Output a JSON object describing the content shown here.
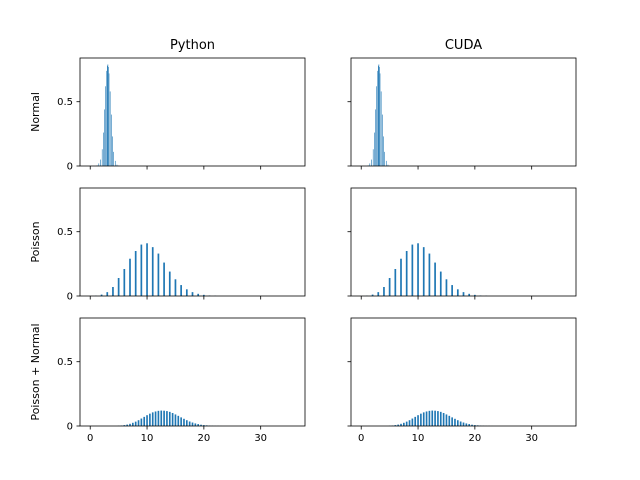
{
  "figure": {
    "columns": [
      "Python",
      "CUDA"
    ],
    "rows": [
      "Normal",
      "Poisson",
      "Poisson + Normal"
    ],
    "bar_color": "#1f77b4",
    "shared_axes": {
      "xlim": [
        -1.8,
        37.8
      ],
      "ylim": [
        0,
        0.84
      ],
      "xticks": [
        0,
        10,
        20,
        30
      ],
      "yticks": [
        0.0,
        0.5
      ]
    }
  },
  "chart_data": [
    {
      "type": "bar",
      "title": "Python",
      "ylabel": "Normal",
      "bin_width": 0.09,
      "xlim": [
        -1.8,
        37.8
      ],
      "ylim": [
        0,
        0.84
      ],
      "xticks": [
        0,
        10,
        20,
        30
      ],
      "yticks": [
        0.0,
        0.5
      ],
      "x": [
        1.2,
        1.5,
        1.8,
        2.1,
        2.3,
        2.5,
        2.7,
        2.9,
        3.0,
        3.1,
        3.2,
        3.3,
        3.5,
        3.7,
        3.9,
        4.1,
        4.4,
        4.7,
        5.0
      ],
      "values": [
        0.005,
        0.02,
        0.05,
        0.13,
        0.26,
        0.44,
        0.62,
        0.74,
        0.78,
        0.79,
        0.77,
        0.72,
        0.58,
        0.4,
        0.23,
        0.11,
        0.04,
        0.01,
        0.003
      ]
    },
    {
      "type": "bar",
      "title": "CUDA",
      "ylabel": "",
      "bin_width": 0.09,
      "xlim": [
        -1.8,
        37.8
      ],
      "ylim": [
        0,
        0.84
      ],
      "xticks": [
        0,
        10,
        20,
        30
      ],
      "yticks": [
        0.0,
        0.5
      ],
      "x": [
        1.2,
        1.5,
        1.8,
        2.1,
        2.3,
        2.5,
        2.7,
        2.9,
        3.0,
        3.1,
        3.2,
        3.3,
        3.5,
        3.7,
        3.9,
        4.1,
        4.4,
        4.7,
        5.0
      ],
      "values": [
        0.005,
        0.02,
        0.05,
        0.13,
        0.26,
        0.44,
        0.62,
        0.74,
        0.78,
        0.79,
        0.77,
        0.72,
        0.58,
        0.4,
        0.23,
        0.11,
        0.04,
        0.01,
        0.003
      ]
    },
    {
      "type": "bar",
      "title": "",
      "ylabel": "Poisson",
      "bin_width": 0.3,
      "xlim": [
        -1.8,
        37.8
      ],
      "ylim": [
        0,
        0.84
      ],
      "xticks": [
        0,
        10,
        20,
        30
      ],
      "yticks": [
        0.0,
        0.5
      ],
      "x": [
        1,
        2,
        3,
        4,
        5,
        6,
        7,
        8,
        9,
        10,
        11,
        12,
        13,
        14,
        15,
        16,
        17,
        18,
        19,
        20,
        21,
        22
      ],
      "values": [
        0.002,
        0.011,
        0.03,
        0.07,
        0.14,
        0.21,
        0.29,
        0.35,
        0.4,
        0.41,
        0.38,
        0.33,
        0.26,
        0.19,
        0.13,
        0.085,
        0.052,
        0.03,
        0.017,
        0.009,
        0.004,
        0.002
      ]
    },
    {
      "type": "bar",
      "title": "",
      "ylabel": "",
      "bin_width": 0.3,
      "xlim": [
        -1.8,
        37.8
      ],
      "ylim": [
        0,
        0.84
      ],
      "xticks": [
        0,
        10,
        20,
        30
      ],
      "yticks": [
        0.0,
        0.5
      ],
      "x": [
        1,
        2,
        3,
        4,
        5,
        6,
        7,
        8,
        9,
        10,
        11,
        12,
        13,
        14,
        15,
        16,
        17,
        18,
        19,
        20,
        21,
        22
      ],
      "values": [
        0.002,
        0.011,
        0.03,
        0.07,
        0.14,
        0.21,
        0.29,
        0.35,
        0.4,
        0.41,
        0.38,
        0.33,
        0.26,
        0.19,
        0.13,
        0.085,
        0.052,
        0.03,
        0.017,
        0.009,
        0.004,
        0.002
      ]
    },
    {
      "type": "bar",
      "title": "",
      "ylabel": "Poisson + Normal",
      "bin_width": 0.29,
      "xlim": [
        -1.8,
        37.8
      ],
      "ylim": [
        0,
        0.84
      ],
      "xticks": [
        0,
        10,
        20,
        30
      ],
      "yticks": [
        0.0,
        0.5
      ],
      "x": [
        5,
        5.5,
        6,
        6.5,
        7,
        7.5,
        8,
        8.5,
        9,
        9.5,
        10,
        10.5,
        11,
        11.5,
        12,
        12.5,
        13,
        13.5,
        14,
        14.5,
        15,
        15.5,
        16,
        16.5,
        17,
        17.5,
        18,
        18.5,
        19,
        19.5,
        20,
        20.5,
        21,
        21.5,
        22,
        22.5,
        23
      ],
      "values": [
        0.002,
        0.004,
        0.007,
        0.011,
        0.017,
        0.025,
        0.034,
        0.045,
        0.058,
        0.071,
        0.084,
        0.096,
        0.106,
        0.113,
        0.118,
        0.12,
        0.119,
        0.116,
        0.11,
        0.101,
        0.09,
        0.079,
        0.067,
        0.056,
        0.045,
        0.035,
        0.027,
        0.02,
        0.015,
        0.01,
        0.007,
        0.005,
        0.003,
        0.002,
        0.001,
        0.001,
        0.0005
      ]
    },
    {
      "type": "bar",
      "title": "",
      "ylabel": "",
      "bin_width": 0.29,
      "xlim": [
        -1.8,
        37.8
      ],
      "ylim": [
        0,
        0.84
      ],
      "xticks": [
        0,
        10,
        20,
        30
      ],
      "yticks": [
        0.0,
        0.5
      ],
      "x": [
        5,
        5.5,
        6,
        6.5,
        7,
        7.5,
        8,
        8.5,
        9,
        9.5,
        10,
        10.5,
        11,
        11.5,
        12,
        12.5,
        13,
        13.5,
        14,
        14.5,
        15,
        15.5,
        16,
        16.5,
        17,
        17.5,
        18,
        18.5,
        19,
        19.5,
        20,
        20.5,
        21,
        21.5,
        22,
        22.5,
        23
      ],
      "values": [
        0.002,
        0.004,
        0.007,
        0.011,
        0.017,
        0.025,
        0.034,
        0.045,
        0.058,
        0.071,
        0.084,
        0.096,
        0.106,
        0.113,
        0.118,
        0.12,
        0.119,
        0.116,
        0.11,
        0.101,
        0.09,
        0.079,
        0.067,
        0.056,
        0.045,
        0.035,
        0.027,
        0.02,
        0.015,
        0.01,
        0.007,
        0.005,
        0.003,
        0.002,
        0.001,
        0.001,
        0.0005
      ]
    }
  ]
}
